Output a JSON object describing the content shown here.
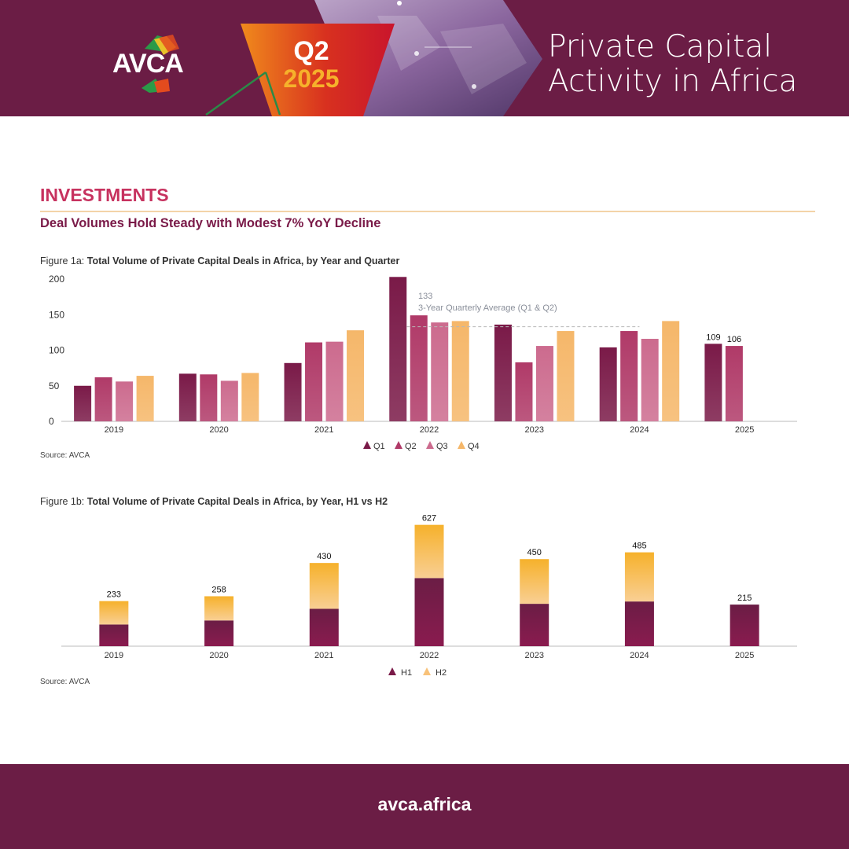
{
  "header": {
    "logo_text": "AVCA",
    "badge_quarter": "Q2",
    "badge_year": "2025",
    "title_line1": "Private Capital",
    "title_line2": "Activity in Africa",
    "bg_color": "#6b1d45"
  },
  "section": {
    "title": "INVESTMENTS",
    "subtitle": "Deal Volumes Hold Steady with Modest 7% YoY Decline"
  },
  "figure1a": {
    "caption_prefix": "Figure 1a:",
    "caption_title": "Total Volume of Private Capital Deals in Africa, by Year and Quarter",
    "source": "Source: AVCA",
    "avg_value_label": "133",
    "avg_text": "3-Year Quarterly Average (Q1 & Q2)"
  },
  "figure1b": {
    "caption_prefix": "Figure 1b:",
    "caption_title": "Total Volume of Private Capital Deals in Africa, by Year, H1 vs H2",
    "source": "Source: AVCA"
  },
  "footer": {
    "url": "avca.africa"
  },
  "chart_data": [
    {
      "type": "bar",
      "categories": [
        "2019",
        "2020",
        "2021",
        "2022",
        "2023",
        "2024",
        "2025"
      ],
      "series": [
        {
          "name": "Q1",
          "values": [
            50,
            67,
            82,
            203,
            136,
            104,
            109
          ],
          "color": "#7a1a48"
        },
        {
          "name": "Q2",
          "values": [
            62,
            66,
            111,
            149,
            83,
            127,
            106
          ],
          "color": "#b03a68"
        },
        {
          "name": "Q3",
          "values": [
            56,
            57,
            112,
            139,
            106,
            116,
            null
          ],
          "color": "#cc6b8e"
        },
        {
          "name": "Q4",
          "values": [
            64,
            68,
            128,
            141,
            127,
            141,
            null
          ],
          "color": "#f5b76a"
        }
      ],
      "data_labels": {
        "2025": [
          "109",
          "106"
        ]
      },
      "reference_line": {
        "value": 133,
        "label": "133",
        "text": "3-Year Quarterly Average (Q1 & Q2)",
        "from": "2022",
        "to": "2024"
      },
      "yticks": [
        "0",
        "50",
        "100",
        "150",
        "200"
      ],
      "ylim": [
        0,
        200
      ],
      "legend_position": "bottom-center"
    },
    {
      "type": "bar",
      "stacked": true,
      "categories": [
        "2019",
        "2020",
        "2021",
        "2022",
        "2023",
        "2024",
        "2025"
      ],
      "series": [
        {
          "name": "H1",
          "values": [
            112,
            133,
            193,
            352,
            219,
            231,
            215
          ],
          "color": "#7a1a48"
        },
        {
          "name": "H2",
          "values": [
            121,
            125,
            237,
            275,
            231,
            254,
            0
          ],
          "color": "#f6b12b"
        }
      ],
      "totals": [
        "233",
        "258",
        "430",
        "627",
        "450",
        "485",
        "215"
      ],
      "ylim": [
        0,
        650
      ],
      "legend_position": "bottom-center"
    }
  ]
}
